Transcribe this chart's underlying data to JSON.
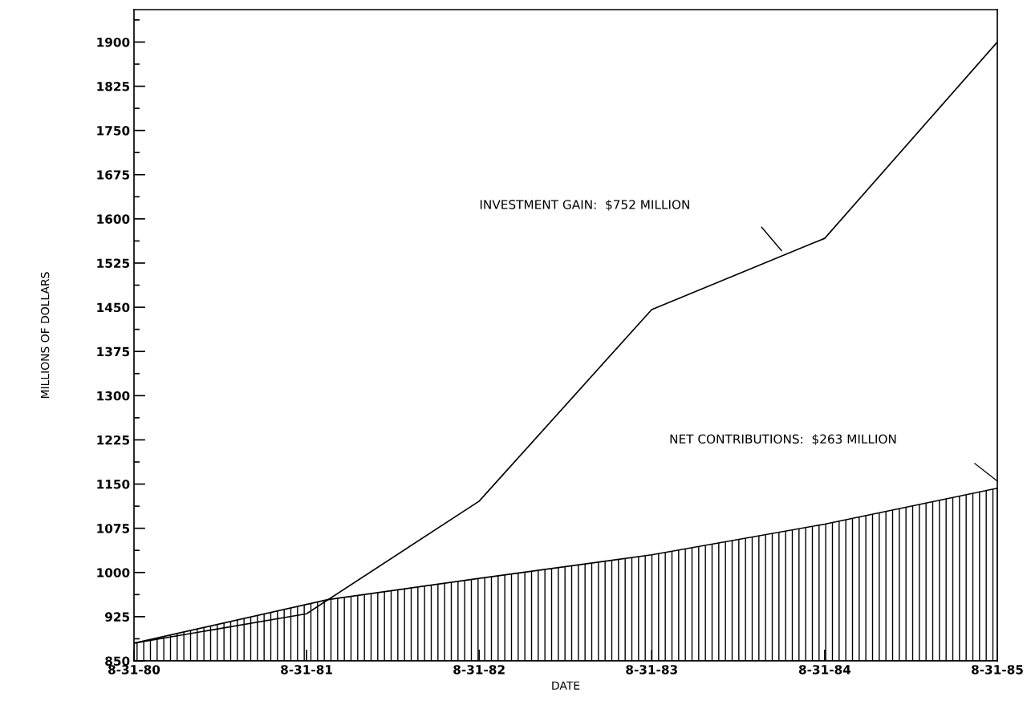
{
  "chart_data": {
    "type": "line",
    "xlabel": "DATE",
    "ylabel": "MILLIONS OF DOLLARS",
    "xlim": [
      "1980-08-31",
      "1985-08-31"
    ],
    "xticks": [
      {
        "value": "1980-08-31",
        "label": "8-31-80"
      },
      {
        "value": "1981-08-31",
        "label": "8-31-81"
      },
      {
        "value": "1982-08-31",
        "label": "8-31-82"
      },
      {
        "value": "1983-08-31",
        "label": "8-31-83"
      },
      {
        "value": "1984-08-31",
        "label": "8-31-84"
      },
      {
        "value": "1985-08-31",
        "label": "8-31-85"
      }
    ],
    "ylim": [
      850,
      1955
    ],
    "yticks": [
      850,
      {
        "value": 887.5,
        "label": null
      },
      925,
      {
        "value": 962.5,
        "label": null
      },
      1000,
      {
        "value": 1037.5,
        "label": null
      },
      1075,
      {
        "value": 1112.5,
        "label": null
      },
      1150,
      {
        "value": 1187.5,
        "label": null
      },
      1225,
      {
        "value": 1262.5,
        "label": null
      },
      1300,
      {
        "value": 1337.5,
        "label": null
      },
      1375,
      {
        "value": 1412.5,
        "label": null
      },
      1450,
      {
        "value": 1487.5,
        "label": null
      },
      1525,
      {
        "value": 1562.5,
        "label": null
      },
      1600,
      {
        "value": 1637.5,
        "label": null
      },
      1675,
      {
        "value": 1712.5,
        "label": null
      },
      1750,
      {
        "value": 1787.5,
        "label": null
      },
      1825,
      {
        "value": 1862.5,
        "label": null
      },
      1900,
      {
        "value": 1937.5,
        "label": null
      }
    ],
    "series": [
      {
        "type": "area",
        "color": "#000000",
        "x": [
          "1980-08-31",
          "1981-10-15",
          "1982-08-31",
          "1983-08-31",
          "1984-08-31",
          "1985-08-31"
        ],
        "values": [
          880,
          954,
          990,
          1030,
          1082,
          1143
        ]
      },
      {
        "color": "#000000",
        "x": [
          "1980-08-31",
          "1981-08-31",
          "1982-08-31",
          "1983-08-31",
          "1984-08-31",
          "1985-08-31"
        ],
        "values": [
          880,
          930,
          1121,
          1446,
          1567,
          1900
        ]
      }
    ],
    "annotations": [
      "INVESTMENT GAIN:  $752 MILLION",
      "NET CONTRIBUTIONS:  $263 MILLION"
    ],
    "grid": false,
    "legend": false,
    "marker": "none",
    "line_style": "solid"
  }
}
